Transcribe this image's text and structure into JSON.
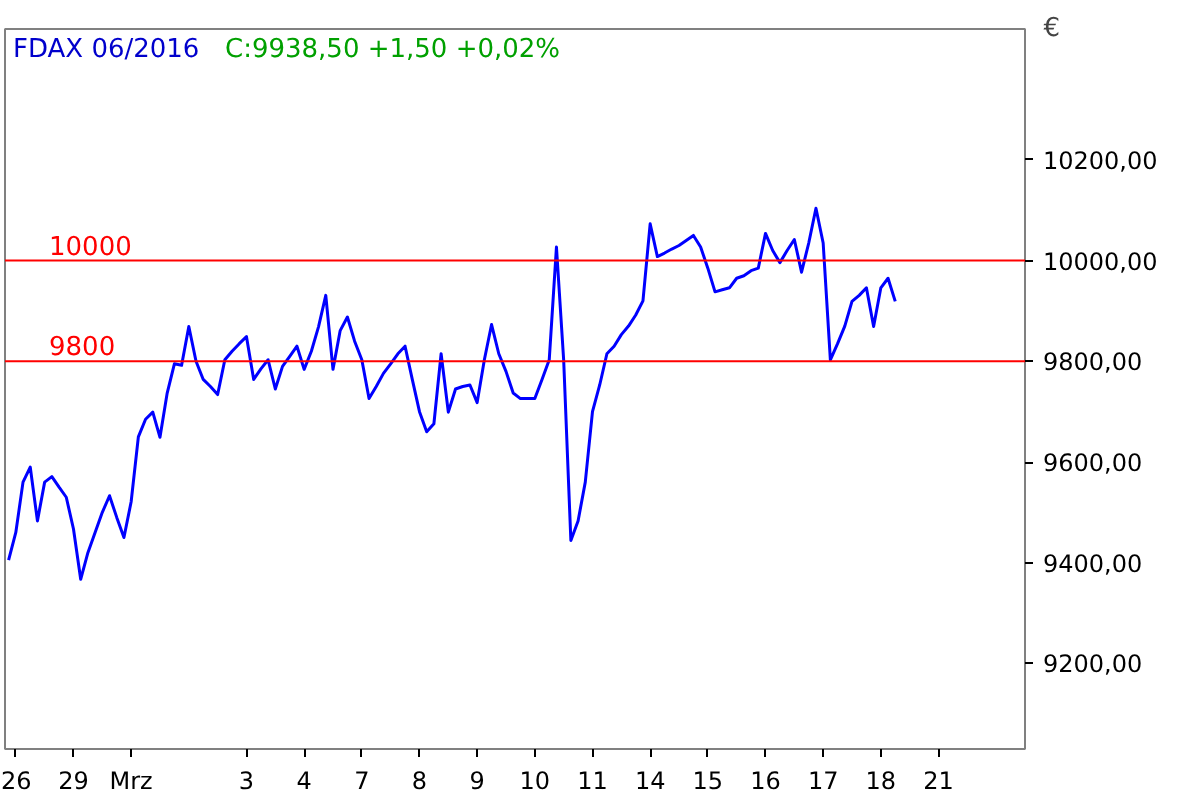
{
  "chart_data": {
    "type": "line",
    "title": "FDAX 06/2016",
    "subtitle": "C:9938,50 +1,50 +0,02%",
    "ylabel": "€",
    "categories": [
      null,
      "26",
      null,
      null,
      null,
      null,
      null,
      null,
      null,
      "29",
      null,
      null,
      null,
      null,
      null,
      null,
      null,
      "Mrz",
      null,
      null,
      null,
      null,
      null,
      null,
      null,
      null,
      null,
      null,
      null,
      null,
      null,
      null,
      null,
      "3",
      null,
      null,
      null,
      null,
      null,
      null,
      null,
      "4",
      null,
      null,
      null,
      null,
      null,
      null,
      null,
      "7",
      null,
      null,
      null,
      null,
      null,
      null,
      null,
      "8",
      null,
      null,
      null,
      null,
      null,
      null,
      null,
      "9",
      null,
      null,
      null,
      null,
      null,
      null,
      null,
      "10",
      null,
      null,
      null,
      null,
      null,
      null,
      null,
      "11",
      null,
      null,
      null,
      null,
      null,
      null,
      null,
      "14",
      null,
      null,
      null,
      null,
      null,
      null,
      null,
      "15",
      null,
      null,
      null,
      null,
      null,
      null,
      null,
      "16",
      null,
      null,
      null,
      null,
      null,
      null,
      null,
      "17",
      null,
      null,
      null,
      null,
      null,
      null,
      null,
      "18",
      null,
      null,
      null,
      null,
      null,
      null,
      null,
      "21",
      null,
      null,
      null,
      null,
      null,
      null,
      null,
      null,
      null,
      null,
      null
    ],
    "series": [
      {
        "color": "#0000ff",
        "values": [
          9405,
          9460,
          9560,
          9590,
          9483,
          9560,
          9571,
          9550,
          9530,
          9467,
          9367,
          9420,
          9460,
          9500,
          9533,
          9490,
          9450,
          9521,
          9650,
          9685,
          9699,
          9649,
          9737,
          9795,
          9792,
          9869,
          9800,
          9764,
          9750,
          9734,
          9803,
          9820,
          9835,
          9849,
          9764,
          9785,
          9803,
          9745,
          9790,
          9810,
          9830,
          9784,
          9820,
          9869,
          9931,
          9784,
          9861,
          9888,
          9840,
          9803,
          9726,
          9750,
          9776,
          9795,
          9815,
          9830,
          9764,
          9700,
          9660,
          9676,
          9815,
          9699,
          9745,
          9750,
          9753,
          9718,
          9803,
          9873,
          9815,
          9780,
          9737,
          9726,
          9726,
          9726,
          9764,
          9803,
          10027,
          9803,
          9444,
          9483,
          9560,
          9700,
          9753,
          9815,
          9830,
          9853,
          9870,
          9892,
          9920,
          10073,
          10008,
          10015,
          10023,
          10030,
          10040,
          10050,
          10027,
          9985,
          9938,
          9942,
          9946,
          9965,
          9970,
          9980,
          9985,
          10054,
          10020,
          9996,
          10020,
          10042,
          9977,
          10035,
          10104,
          10035,
          9803,
          9835,
          9870,
          9919,
          9931,
          9946,
          9869,
          9946,
          9965,
          9919,
          null,
          null,
          null,
          null,
          null,
          null,
          null,
          null,
          null,
          null,
          null,
          null,
          null,
          null,
          null,
          null,
          null
        ]
      }
    ],
    "ylim": [
      9030,
      10460
    ],
    "yticks": [
      {
        "value": 9200,
        "label": "9200,00"
      },
      {
        "value": 9400,
        "label": "9400,00"
      },
      {
        "value": 9600,
        "label": "9600,00"
      },
      {
        "value": 9800,
        "label": "9800,00"
      },
      {
        "value": 10000,
        "label": "10000,00"
      },
      {
        "value": 10200,
        "label": "10200,00"
      }
    ],
    "ref_lines": [
      {
        "axis": "y",
        "value": 10000,
        "label": "10000",
        "color": "#ff0000"
      },
      {
        "axis": "y",
        "value": 9800,
        "label": "9800",
        "color": "#ff0000"
      }
    ]
  }
}
